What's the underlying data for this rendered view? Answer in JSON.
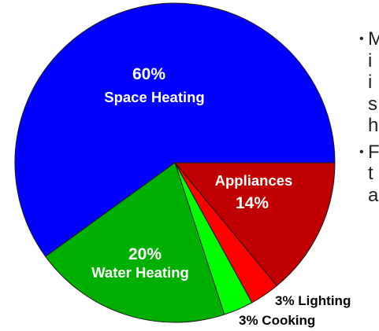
{
  "chart_data": {
    "type": "pie",
    "slices": [
      {
        "label": "Space Heating",
        "value": 60,
        "value_label": "60%",
        "color": "#0000ff",
        "label_position": "inside"
      },
      {
        "label": "Appliances",
        "value": 14,
        "value_label": "14%",
        "color": "#c00000",
        "label_position": "inside"
      },
      {
        "label": "Lighting",
        "value": 3,
        "value_label": "3% Lighting",
        "color": "#ff0000",
        "label_position": "outside"
      },
      {
        "label": "Cooking",
        "value": 3,
        "value_label": "3% Cooking",
        "color": "#00ff00",
        "label_position": "outside"
      },
      {
        "label": "Water Heating",
        "value": 20,
        "value_label": "20%",
        "color": "#00b000",
        "label_position": "inside"
      }
    ]
  },
  "bullets": [
    {
      "lines": [
        "M",
        "i",
        "i",
        "s",
        "h"
      ]
    },
    {
      "lines": [
        "F",
        "t",
        "a"
      ]
    }
  ]
}
